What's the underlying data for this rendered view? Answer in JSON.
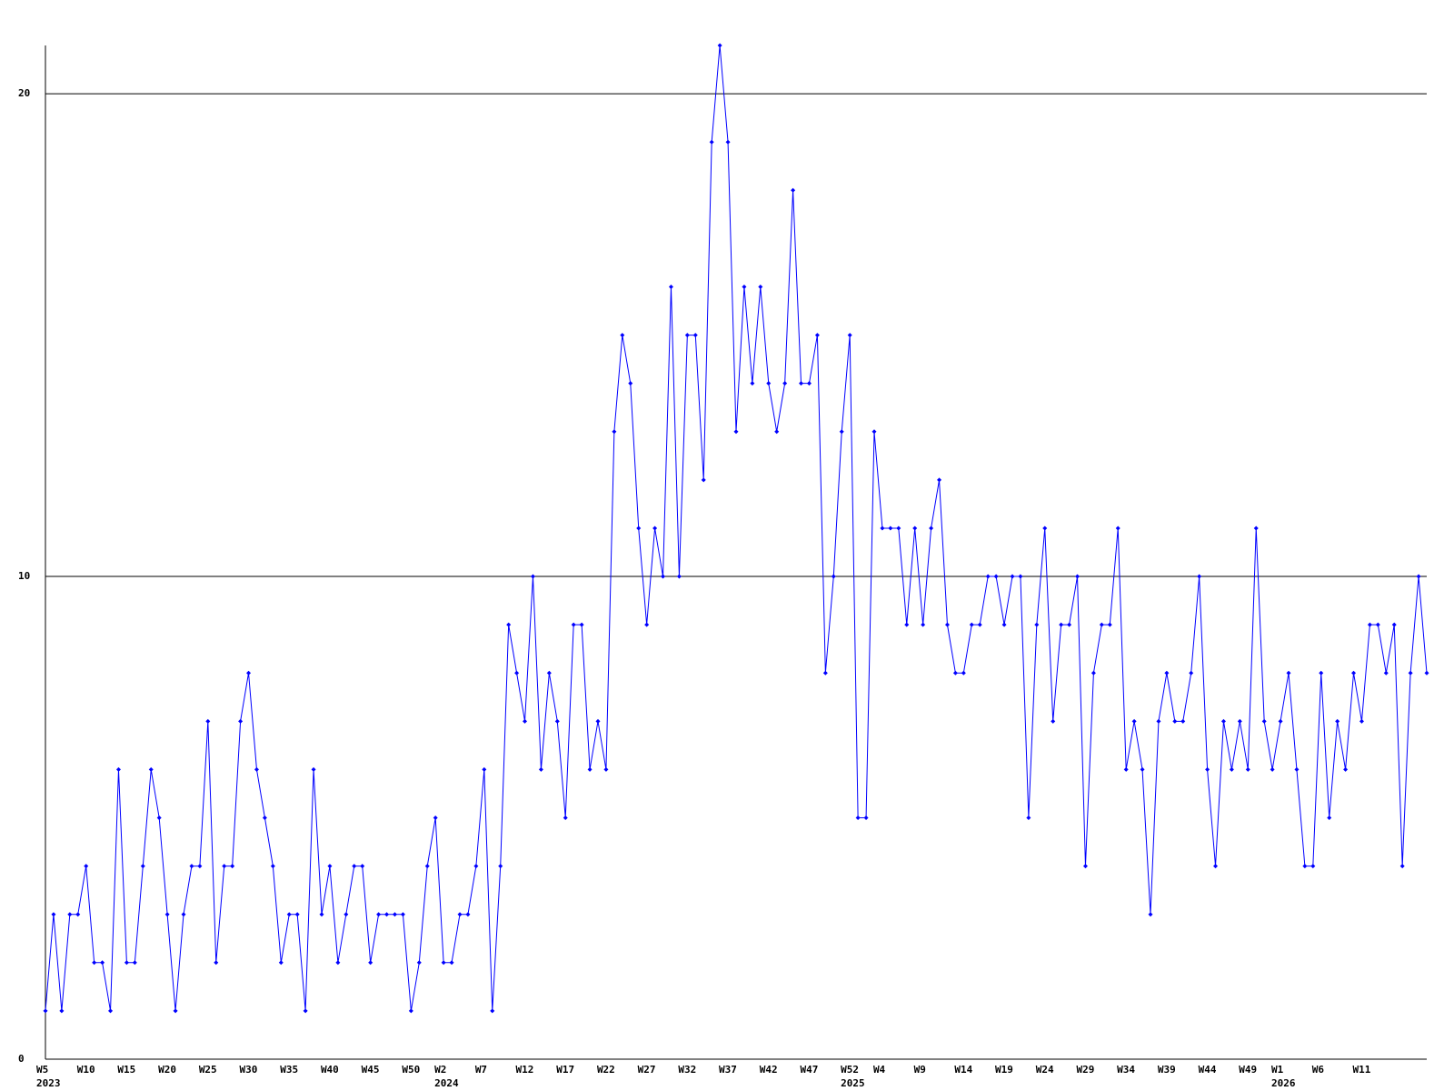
{
  "chart_data": {
    "type": "line",
    "color": "#0000ff",
    "grid": true,
    "ylim": [
      0,
      21
    ],
    "yticks": [
      0,
      10,
      20
    ],
    "categories": [
      "W5",
      null,
      null,
      null,
      null,
      "W10",
      null,
      null,
      null,
      null,
      "W15",
      null,
      null,
      null,
      null,
      "W20",
      null,
      null,
      null,
      null,
      "W25",
      null,
      null,
      null,
      null,
      "W30",
      null,
      null,
      null,
      null,
      "W35",
      null,
      null,
      null,
      null,
      "W40",
      null,
      null,
      null,
      null,
      "W45",
      null,
      null,
      null,
      null,
      "W50",
      null,
      null,
      null,
      "W2",
      null,
      null,
      null,
      null,
      "W7",
      null,
      null,
      null,
      null,
      "W12",
      null,
      null,
      null,
      null,
      "W17",
      null,
      null,
      null,
      null,
      "W22",
      null,
      null,
      null,
      null,
      "W27",
      null,
      null,
      null,
      null,
      "W32",
      null,
      null,
      null,
      null,
      "W37",
      null,
      null,
      null,
      null,
      "W42",
      null,
      null,
      null,
      null,
      "W47",
      null,
      null,
      null,
      null,
      "W52",
      null,
      null,
      null,
      "W4",
      null,
      null,
      null,
      null,
      "W9",
      null,
      null,
      null,
      null,
      "W14",
      null,
      null,
      null,
      null,
      "W19",
      null,
      null,
      null,
      null,
      "W24",
      null,
      null,
      null,
      null,
      "W29",
      null,
      null,
      null,
      null,
      "W34",
      null,
      null,
      null,
      null,
      "W39",
      null,
      null,
      null,
      null,
      "W44",
      null,
      null,
      null,
      null,
      "W49",
      null,
      null,
      null,
      "W1",
      null,
      null,
      null,
      null,
      "W6",
      null,
      null,
      null,
      null,
      "W11",
      null,
      null,
      null,
      null,
      null,
      null,
      null,
      null
    ],
    "category_years": [
      "2023",
      null,
      null,
      null,
      null,
      null,
      null,
      null,
      null,
      null,
      null,
      null,
      null,
      null,
      null,
      null,
      null,
      null,
      null,
      null,
      null,
      null,
      null,
      null,
      null,
      null,
      null,
      null,
      null,
      null,
      null,
      null,
      null,
      null,
      null,
      null,
      null,
      null,
      null,
      null,
      null,
      null,
      null,
      null,
      null,
      null,
      null,
      null,
      null,
      "2024",
      null,
      null,
      null,
      null,
      null,
      null,
      null,
      null,
      null,
      null,
      null,
      null,
      null,
      null,
      null,
      null,
      null,
      null,
      null,
      null,
      null,
      null,
      null,
      null,
      null,
      null,
      null,
      null,
      null,
      null,
      null,
      null,
      null,
      null,
      null,
      null,
      null,
      null,
      null,
      null,
      null,
      null,
      null,
      null,
      null,
      null,
      null,
      null,
      null,
      "2025",
      null,
      null,
      null,
      null,
      null,
      null,
      null,
      null,
      null,
      null,
      null,
      null,
      null,
      null,
      null,
      null,
      null,
      null,
      null,
      null,
      null,
      null,
      null,
      null,
      null,
      null,
      null,
      null,
      null,
      null,
      null,
      null,
      null,
      null,
      null,
      null,
      null,
      null,
      null,
      null,
      null,
      null,
      null,
      null,
      null,
      null,
      null,
      null,
      null,
      null,
      null,
      null,
      "2026",
      null,
      null,
      null,
      null,
      null,
      null,
      null,
      null,
      null,
      null,
      null,
      null,
      null,
      null,
      null,
      null,
      null,
      null
    ],
    "values": [
      1,
      3,
      1,
      3,
      3,
      4,
      2,
      2,
      1,
      6,
      2,
      2,
      4,
      6,
      5,
      3,
      1,
      3,
      4,
      4,
      7,
      2,
      4,
      4,
      7,
      8,
      6,
      5,
      4,
      2,
      3,
      3,
      1,
      6,
      3,
      4,
      2,
      3,
      4,
      4,
      2,
      3,
      3,
      3,
      3,
      1,
      2,
      4,
      5,
      2,
      2,
      3,
      3,
      4,
      6,
      1,
      4,
      9,
      8,
      7,
      10,
      6,
      8,
      7,
      5,
      9,
      9,
      6,
      7,
      6,
      13,
      15,
      14,
      11,
      9,
      11,
      10,
      16,
      10,
      15,
      15,
      12,
      19,
      21,
      19,
      13,
      16,
      14,
      16,
      14,
      13,
      14,
      18,
      14,
      14,
      15,
      8,
      10,
      13,
      15,
      5,
      5,
      13,
      11,
      11,
      11,
      9,
      11,
      9,
      11,
      12,
      9,
      8,
      8,
      9,
      9,
      10,
      10,
      9,
      10,
      10,
      5,
      9,
      11,
      7,
      9,
      9,
      10,
      4,
      8,
      9,
      9,
      11,
      6,
      7,
      6,
      3,
      7,
      8,
      7,
      7,
      8,
      10,
      6,
      4,
      7,
      6,
      7,
      6,
      11,
      7,
      6,
      7,
      8,
      6,
      4,
      4,
      8,
      5,
      7,
      6,
      8,
      7,
      9,
      9,
      8,
      9,
      4,
      8,
      10,
      8
    ]
  }
}
